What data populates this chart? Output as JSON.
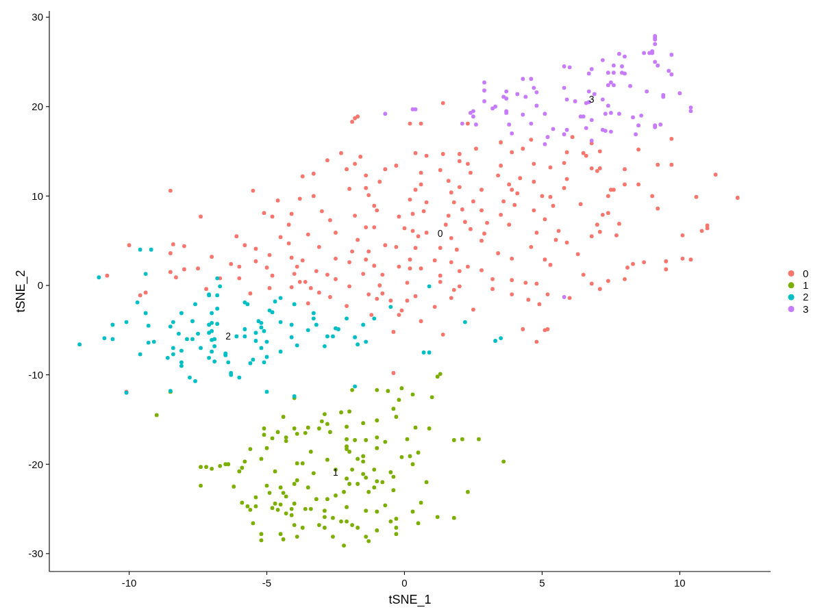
{
  "chart_data": {
    "type": "scatter",
    "xlabel": "tSNE_1",
    "ylabel": "tSNE_2",
    "xlim": [
      -12.9,
      13.3
    ],
    "ylim": [
      -32.0,
      30.7
    ],
    "xticks": [
      -10,
      -5,
      0,
      5,
      10
    ],
    "yticks": [
      -30,
      -20,
      -10,
      0,
      10,
      20,
      30
    ],
    "legend": "right",
    "marker": "circle",
    "series": [
      {
        "name": "0",
        "color": "#f8766d",
        "x": [
          -2.8,
          -3.7,
          -3.3,
          -8.5,
          -5.5,
          -4.6,
          -3.8,
          -3.3,
          -7.4,
          -5.1,
          -4.8,
          -4.1,
          -4.2,
          -3.0,
          -2.7,
          -3.5,
          -2.5,
          -6.1,
          -4.5,
          -4.2,
          -10.0,
          -8.4,
          -8.5,
          -8.0,
          -7.0,
          -5.8,
          -5.4,
          -4.9,
          -3.1,
          -4.1,
          -3.7,
          -2.5,
          -6.3,
          -6.0,
          -5.4,
          -5.0,
          -3.9,
          -3.2,
          -4.0,
          -2.8,
          -2.5,
          -8.5,
          -8.0,
          -7.5,
          -8.3,
          -10.8,
          -6.0,
          -4.8,
          -3.8,
          -3.6,
          -4.1,
          -4.9,
          -7.2,
          -5.6,
          -3.1,
          -2.7,
          -3.5,
          -6.7,
          -9.6,
          -9.4,
          -10.1,
          1.4,
          -1.9,
          -1.8,
          -1.7,
          0.2,
          0.6,
          2.3,
          -2.3,
          -1.6,
          0.4,
          0.8,
          1.4,
          2.0,
          2.6,
          3.5,
          4.6,
          6.1,
          2.0,
          2.3,
          3.9,
          4.3,
          5.9,
          4.7,
          5.8,
          3.5,
          5.3,
          -2.1,
          -1.8,
          -1.4,
          -0.7,
          -0.3,
          0.6,
          1.3,
          2.4,
          3.4,
          4.2,
          3.8,
          4.7,
          5.9,
          1.6,
          2.0,
          2.8,
          -0.9,
          -1.4,
          -2.0,
          -1.3,
          0.6,
          0.4,
          0.2,
          1.7,
          0.8,
          1.8,
          2.5,
          3.9,
          4.1,
          5.0,
          5.3,
          5.8,
          3.6,
          4.0,
          5.4,
          4.7,
          3.5,
          3.8,
          5.1,
          5.6,
          4.8,
          5.5,
          5.9,
          4.6,
          -1.1,
          -1.0,
          -1.8,
          -0.2,
          0.3,
          0.7,
          2.1,
          2.8,
          3.0,
          2.9,
          2.8,
          2.2,
          2.4,
          1.6,
          1.5,
          1.7,
          1.9,
          1.3,
          0.8,
          0.5,
          0.3,
          0.4,
          0.0,
          -1.4,
          -1.1,
          -1.7,
          -1.9,
          -1.3,
          -0.7,
          -0.3,
          -2.0,
          -1.4,
          -1.1,
          0.2,
          1.1,
          1.7,
          2.3,
          2.8,
          2.0,
          3.4,
          3.9,
          5.1,
          5.3,
          4.8,
          4.4,
          3.9,
          3.2,
          3.2,
          3.9,
          4.5,
          4.9,
          5.2,
          6.0,
          4.3,
          5.1,
          5.2,
          4.8,
          2.5,
          1.7,
          1.8,
          2.0,
          1.3,
          1.3,
          1.1,
          1.4,
          0.6,
          0.2,
          -0.2,
          0.1,
          0.4,
          0.1,
          0.6,
          -0.1,
          -0.2,
          -0.5,
          -0.4,
          -1.2,
          -1.0,
          -0.8,
          -1.3,
          -0.9,
          -0.8,
          -1.5,
          -2.0,
          -2.1,
          -3.4,
          -0.4,
          6.8,
          9.7,
          6.5,
          6.6,
          7.1,
          8.5,
          6.8,
          7.0,
          7.1,
          8.0,
          9.2,
          9.7,
          11.3,
          6.4,
          8.0,
          8.5,
          7.5,
          7.6,
          7.4,
          9.0,
          10.6,
          12.1,
          9.2,
          7.2,
          7.4,
          7.0,
          7.1,
          7.8,
          6.8,
          7.7,
          10.1,
          10.8,
          11.0,
          11.0,
          6.3,
          6.5,
          8.1,
          8.3,
          8.7,
          9.5,
          10.1,
          10.4,
          9.5,
          8.0,
          7.4,
          7.1,
          6.8
        ],
        "values": [
          14.0,
          12.2,
          12.5,
          10.6,
          10.6,
          9.5,
          9.7,
          10.0,
          7.7,
          8.1,
          7.7,
          8.0,
          6.8,
          8.3,
          7.3,
          5.7,
          5.9,
          5.5,
          5.4,
          4.7,
          4.5,
          4.6,
          3.6,
          4.4,
          3.2,
          4.5,
          4.1,
          3.4,
          4.3,
          3.1,
          2.8,
          3.0,
          2.4,
          2.1,
          2.7,
          2.0,
          2.1,
          1.6,
          1.3,
          1.2,
          0.7,
          1.5,
          1.8,
          1.9,
          0.9,
          1.1,
          0.8,
          1.1,
          0.4,
          0.4,
          -0.2,
          -0.3,
          -0.4,
          -0.9,
          -0.8,
          -1.3,
          -2.0,
          0.8,
          -1.1,
          -0.8,
          -11.9,
          20.4,
          18.3,
          18.7,
          18.9,
          18.1,
          18.1,
          18.1,
          14.8,
          14.4,
          14.8,
          14.5,
          14.7,
          14.7,
          15.3,
          16.0,
          16.3,
          16.6,
          13.9,
          13.6,
          14.9,
          15.3,
          14.9,
          13.6,
          13.7,
          13.4,
          13.2,
          13.0,
          13.6,
          12.3,
          13.0,
          13.4,
          12.6,
          12.9,
          12.6,
          12.3,
          12.0,
          11.3,
          11.6,
          11.9,
          11.7,
          11.0,
          10.7,
          11.6,
          10.9,
          10.8,
          10.1,
          11.3,
          10.7,
          9.6,
          10.4,
          9.3,
          9.3,
          9.4,
          10.7,
          10.3,
          10.0,
          9.9,
          10.9,
          9.4,
          9.0,
          8.9,
          8.4,
          7.9,
          6.8,
          7.4,
          6.1,
          5.9,
          5.1,
          4.8,
          4.3,
          8.9,
          8.4,
          7.8,
          7.7,
          8.0,
          8.3,
          8.5,
          8.4,
          7.0,
          5.8,
          5.0,
          7.1,
          6.3,
          7.8,
          6.8,
          5.3,
          4.0,
          4.2,
          5.9,
          5.5,
          6.1,
          4.2,
          6.4,
          6.5,
          6.5,
          5.1,
          3.8,
          3.8,
          4.5,
          4.3,
          2.6,
          2.9,
          2.2,
          2.9,
          2.8,
          2.6,
          2.1,
          1.7,
          1.6,
          3.6,
          3.0,
          2.9,
          2.3,
          0.2,
          0.3,
          0.6,
          0.7,
          -0.4,
          -1.0,
          -1.6,
          -2.1,
          -1.0,
          -1.4,
          -4.9,
          -5.0,
          -4.9,
          -6.3,
          -2.7,
          -1.4,
          -0.5,
          -0.1,
          1.1,
          0.4,
          -2.4,
          -5.5,
          1.9,
          1.9,
          2.1,
          0.3,
          -1.2,
          -1.7,
          -4.0,
          -2.8,
          -3.3,
          -1.7,
          -5.2,
          -3.3,
          -1.5,
          -0.9,
          -1.0,
          0.0,
          1.2,
          1.3,
          -0.1,
          -2.3,
          -0.3,
          -9.8,
          15.9,
          16.4,
          14.8,
          14.5,
          15.0,
          15.2,
          13.1,
          12.8,
          13.1,
          13.0,
          13.5,
          13.5,
          12.4,
          9.1,
          11.3,
          11.3,
          10.7,
          10.7,
          10.0,
          10.0,
          9.9,
          9.8,
          8.6,
          7.9,
          8.1,
          6.8,
          6.0,
          6.9,
          5.5,
          5.6,
          5.6,
          6.1,
          6.4,
          6.7,
          3.5,
          1.2,
          2.0,
          2.4,
          2.6,
          2.7,
          3.0,
          2.9,
          1.8,
          0.7,
          0.5,
          -0.4,
          0.2
        ]
      },
      {
        "name": "1",
        "color": "#7cae00",
        "x": [
          1.3,
          1.2,
          -1.9,
          -4.0,
          -1.0,
          -0.6,
          -0.1,
          0.3,
          1.0,
          -0.2,
          -0.4,
          -0.3,
          -2.3,
          -2.0,
          -2.9,
          -3.0,
          -2.8,
          -2.7,
          -3.1,
          -3.5,
          -3.6,
          -3.9,
          -4.0,
          -4.4,
          -4.3,
          -4.3,
          -4.6,
          -4.8,
          -5.1,
          -5.1,
          -5.0,
          -5.6,
          -5.2,
          -5.8,
          -5.9,
          -6.0,
          -6.4,
          -6.5,
          -6.7,
          -7.0,
          -7.2,
          -7.4,
          -7.4,
          -6.2,
          -5.9,
          -5.7,
          -5.6,
          -5.4,
          -5.4,
          -5.0,
          -4.9,
          -4.7,
          -4.5,
          -4.4,
          -4.3,
          -4.7,
          -4.8,
          -4.6,
          -4.5,
          -4.3,
          -4.1,
          -4.0,
          -4.1,
          -5.5,
          -5.2,
          -5.2,
          -4.5,
          -4.4,
          -4.0,
          -3.9,
          -3.7,
          -3.6,
          -3.4,
          -3.9,
          -3.7,
          -3.4,
          -3.3,
          -3.9,
          -4.0,
          -3.5,
          -3.2,
          -2.8,
          -2.9,
          -2.9,
          -2.6,
          -2.9,
          -3.1,
          -2.6,
          -2.2,
          -2.3,
          -2.1,
          -1.9,
          -1.7,
          -1.4,
          -1.3,
          -1.0,
          -2.1,
          -1.4,
          -1.0,
          -0.7,
          -0.5,
          -0.3,
          -0.3,
          -0.3,
          0.3,
          0.5,
          0.6,
          1.2,
          1.8,
          2.3,
          0.8,
          -0.4,
          -0.4,
          -0.5,
          -0.8,
          -1.0,
          -1.1,
          -1.3,
          -1.4,
          -1.5,
          -1.1,
          -1.7,
          -2.0,
          -2.1,
          -1.9,
          -2.2,
          -2.5,
          -2.5,
          -2.8,
          -2.0,
          -2.1,
          -2.1,
          -2.1,
          -1.8,
          -1.4,
          -2.1,
          -1.5,
          -1.0,
          -1.0,
          -0.7,
          -1.0,
          -1.5,
          -1.5,
          -1.7,
          -0.1,
          0.2,
          0.5,
          0.3,
          0.1,
          0.4,
          0.9,
          1.8,
          2.1,
          2.7,
          3.6,
          -9.0,
          -8.5
        ],
        "values": [
          -9.9,
          -10.2,
          -11.7,
          -12.6,
          -11.7,
          -11.8,
          -11.5,
          -12.2,
          -12.5,
          -12.8,
          -13.8,
          -14.7,
          -14.2,
          -14.1,
          -14.4,
          -15.2,
          -15.5,
          -16.4,
          -16.0,
          -15.9,
          -16.5,
          -16.6,
          -16.0,
          -14.7,
          -17.0,
          -17.4,
          -16.4,
          -17.1,
          -16.0,
          -16.7,
          -18.2,
          -18.3,
          -19.4,
          -19.7,
          -20.4,
          -20.8,
          -20.0,
          -20.0,
          -20.2,
          -20.5,
          -20.3,
          -20.3,
          -22.4,
          -22.5,
          -24.3,
          -24.7,
          -25.1,
          -24.7,
          -23.7,
          -22.4,
          -23.2,
          -20.8,
          -22.6,
          -23.2,
          -23.6,
          -24.4,
          -24.9,
          -25.1,
          -24.5,
          -25.5,
          -25.7,
          -24.4,
          -25.0,
          -26.6,
          -27.8,
          -28.5,
          -27.8,
          -28.4,
          -26.8,
          -28.1,
          -27.1,
          -25.0,
          -25.0,
          -19.9,
          -19.9,
          -18.6,
          -21.0,
          -21.8,
          -22.2,
          -22.6,
          -23.9,
          -23.9,
          -25.2,
          -25.9,
          -26.0,
          -27.1,
          -26.8,
          -28.1,
          -29.1,
          -26.4,
          -26.4,
          -26.8,
          -27.1,
          -28.1,
          -28.6,
          -27.4,
          -24.8,
          -25.2,
          -25.3,
          -24.6,
          -26.4,
          -26.1,
          -27.1,
          -27.8,
          -25.3,
          -26.6,
          -24.3,
          -25.9,
          -26.0,
          -23.1,
          -22.0,
          -22.9,
          -21.4,
          -20.9,
          -22.0,
          -21.9,
          -22.6,
          -23.1,
          -21.5,
          -21.1,
          -20.6,
          -22.2,
          -22.2,
          -21.6,
          -20.6,
          -23.1,
          -23.5,
          -20.6,
          -19.5,
          -18.6,
          -18.3,
          -18.0,
          -17.2,
          -17.3,
          -17.3,
          -15.8,
          -15.4,
          -15.1,
          -17.0,
          -17.5,
          -18.2,
          -19.1,
          -19.7,
          -19.4,
          -19.2,
          -19.1,
          -18.7,
          -20.0,
          -17.2,
          -15.9,
          -16.0,
          -17.3,
          -17.2,
          -17.2,
          -19.7,
          -14.5,
          -11.9
        ]
      },
      {
        "name": "2",
        "color": "#00bfc4",
        "x": [
          -9.6,
          -9.2,
          -11.1,
          -9.4,
          -6.8,
          -6.7,
          -7.1,
          -7.1,
          -6.8,
          -7.6,
          -9.7,
          -9.4,
          -8.1,
          -7.0,
          -6.8,
          -5.8,
          -5.7,
          -4.7,
          -4.5,
          -4.0,
          -4.9,
          -4.8,
          -3.3,
          -3.3,
          -3.2,
          -3.5,
          -2.5,
          -2.4,
          -2.8,
          -2.6,
          -2.9,
          -10.6,
          -10.1,
          -9.3,
          -8.4,
          -8.5,
          -7.7,
          -7.1,
          -7.0,
          -6.8,
          -8.2,
          -7.5,
          -7.1,
          -7.0,
          -7.9,
          -7.7,
          -7.0,
          -6.9,
          -6.1,
          -5.8,
          -5.8,
          -5.3,
          -5.2,
          -5.2,
          -5.1,
          -5.4,
          -5.4,
          -5.0,
          -5.2,
          -4.5,
          -4.1,
          -4.1,
          -3.9,
          -4.5,
          -10.9,
          -10.6,
          -11.8,
          -9.3,
          -9.1,
          -9.6,
          -8.4,
          -8.4,
          -8.1,
          -8.6,
          -8.1,
          -8.1,
          -7.4,
          -6.9,
          -7.0,
          -7.1,
          -6.9,
          -6.5,
          -6.5,
          -6.4,
          -6.3,
          -6.3,
          -6.0,
          -7.8,
          -7.6,
          -5.6,
          -5.5,
          -5.1,
          -5.0,
          -5.0,
          -8.5,
          -4.0,
          -10.1,
          0.9,
          -0.5,
          -2.1,
          -1.1,
          -1.5,
          2.2,
          3.3,
          3.5,
          -1.4,
          -1.8,
          0.7,
          0.9,
          -1.7,
          -1.8
        ],
        "values": [
          4.0,
          4.0,
          0.9,
          1.3,
          0.8,
          -0.1,
          -1.0,
          -1.1,
          -1.1,
          -2.1,
          -1.9,
          -3.1,
          -3.1,
          -3.1,
          -2.6,
          -1.9,
          -2.1,
          -1.8,
          -1.4,
          -2.1,
          -2.8,
          -3.0,
          -3.1,
          -3.7,
          -4.4,
          -5.0,
          -4.8,
          -4.9,
          -5.7,
          -5.7,
          -6.8,
          -4.4,
          -4.1,
          -4.5,
          -4.1,
          -4.6,
          -4.0,
          -4.4,
          -4.2,
          -4.3,
          -5.4,
          -5.4,
          -5.3,
          -5.1,
          -6.0,
          -6.0,
          -6.1,
          -6.0,
          -5.7,
          -5.7,
          -4.9,
          -4.0,
          -4.2,
          -4.7,
          -5.1,
          -5.3,
          -6.2,
          -6.3,
          -7.0,
          -4.1,
          -4.4,
          -5.8,
          -6.7,
          -7.4,
          -5.9,
          -6.0,
          -6.6,
          -6.4,
          -6.3,
          -7.7,
          -7.0,
          -7.7,
          -7.3,
          -8.1,
          -8.6,
          -9.0,
          -7.0,
          -6.8,
          -7.4,
          -8.1,
          -8.5,
          -7.6,
          -7.8,
          -8.6,
          -9.8,
          -10.0,
          -10.3,
          -10.3,
          -10.7,
          -8.7,
          -8.3,
          -8.6,
          -8.0,
          -11.9,
          -11.8,
          -12.4,
          -12.0,
          -0.1,
          -2.4,
          -3.7,
          -3.7,
          -4.4,
          -4.1,
          -6.2,
          -5.9,
          -6.3,
          -11.3,
          -7.5,
          -7.5,
          -6.6,
          -5.8
        ]
      },
      {
        "name": "3",
        "color": "#c77cff",
        "x": [
          9.1,
          9.1,
          9.1,
          9.1,
          9.0,
          9.0,
          8.9,
          8.7,
          9.7,
          7.8,
          8.0,
          7.2,
          9.1,
          9.2,
          7.6,
          7.9,
          5.8,
          6.0,
          6.8,
          6.7,
          7.4,
          7.6,
          7.9,
          8.0,
          9.6,
          9.7,
          4.3,
          4.6,
          2.9,
          2.9,
          2.9,
          3.6,
          3.7,
          3.7,
          4.1,
          4.4,
          4.7,
          4.8,
          5.8,
          7.4,
          7.5,
          7.6,
          8.2,
          8.8,
          9.4,
          9.4,
          10.0,
          10.4,
          10.4,
          6.7,
          6.9,
          7.2,
          7.4,
          5.9,
          6.2,
          6.6,
          6.7,
          3.3,
          3.2,
          3.7,
          3.7,
          4.8,
          5.1,
          4.3,
          2.5,
          2.4,
          2.5,
          2.6,
          2.1,
          3.8,
          3.9,
          4.6,
          5.4,
          5.2,
          5.1,
          5.8,
          5.9,
          6.4,
          6.5,
          6.8,
          6.6,
          7.3,
          7.5,
          7.8,
          7.2,
          7.3,
          7.5,
          8.3,
          8.6,
          8.5,
          8.4,
          9.1,
          9.1,
          9.3,
          6.8,
          5.8,
          -0.7,
          0.3,
          0.4
        ],
        "values": [
          27.9,
          27.7,
          27.5,
          27.0,
          26.2,
          26.0,
          26.0,
          26.0,
          25.8,
          25.9,
          25.6,
          25.2,
          25.0,
          24.6,
          24.6,
          24.5,
          24.5,
          24.4,
          24.2,
          23.7,
          23.8,
          23.8,
          23.8,
          23.7,
          24.0,
          23.6,
          23.1,
          23.1,
          22.7,
          21.8,
          20.6,
          21.1,
          20.9,
          21.7,
          21.4,
          21.1,
          22.1,
          21.6,
          22.1,
          22.4,
          22.7,
          22.4,
          22.3,
          21.7,
          21.1,
          21.3,
          21.5,
          19.9,
          19.5,
          21.7,
          21.4,
          20.8,
          20.1,
          20.8,
          20.6,
          20.4,
          20.5,
          20.0,
          19.8,
          19.5,
          19.3,
          20.1,
          19.2,
          19.1,
          19.5,
          19.3,
          18.9,
          18.0,
          18.1,
          18.0,
          17.0,
          18.1,
          17.5,
          16.6,
          15.8,
          16.9,
          17.4,
          18.9,
          18.9,
          18.5,
          17.6,
          19.2,
          19.3,
          19.2,
          17.4,
          17.3,
          17.2,
          18.8,
          19.0,
          17.9,
          16.9,
          17.9,
          17.7,
          18.0,
          16.2,
          -1.3,
          19.2,
          19.7,
          19.7
        ]
      }
    ]
  }
}
